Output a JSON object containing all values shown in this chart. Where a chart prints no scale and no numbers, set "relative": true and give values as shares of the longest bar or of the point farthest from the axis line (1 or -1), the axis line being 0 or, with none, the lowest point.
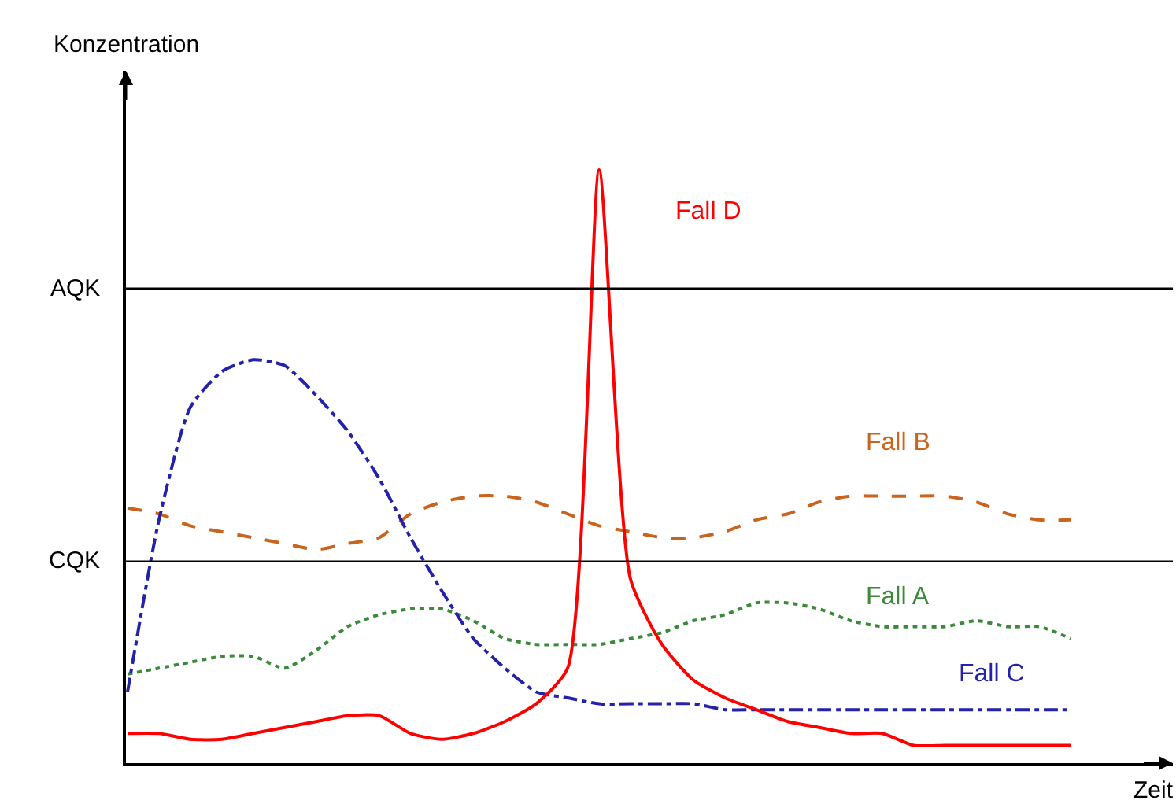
{
  "chart_data": {
    "type": "line",
    "relative": true,
    "xlabel": "Zeit",
    "ylabel": "Konzentration",
    "categories": [
      null,
      null,
      null,
      null,
      null,
      null,
      null,
      null,
      null,
      null,
      null,
      null,
      null,
      null,
      null,
      null,
      null,
      null,
      null,
      null,
      null,
      null,
      null,
      null,
      null,
      null,
      null,
      null,
      null,
      null,
      null
    ],
    "series": [
      {
        "name": "Fall A",
        "color": "#3a8a3a",
        "line_style": "dotted",
        "values": [
          0.15,
          0.16,
          0.17,
          0.18,
          0.18,
          0.16,
          0.19,
          0.23,
          0.25,
          0.26,
          0.26,
          0.24,
          0.21,
          0.2,
          0.2,
          0.2,
          0.21,
          0.22,
          0.24,
          0.25,
          0.27,
          0.27,
          0.26,
          0.24,
          0.23,
          0.23,
          0.23,
          0.24,
          0.23,
          0.23,
          0.21
        ]
      },
      {
        "name": "Fall B",
        "color": "#c8641e",
        "line_style": "dashed",
        "values": [
          0.43,
          0.42,
          0.4,
          0.39,
          0.38,
          0.37,
          0.36,
          0.37,
          0.38,
          0.42,
          0.44,
          0.45,
          0.45,
          0.44,
          0.42,
          0.4,
          0.39,
          0.38,
          0.38,
          0.39,
          0.41,
          0.42,
          0.44,
          0.45,
          0.45,
          0.45,
          0.45,
          0.44,
          0.42,
          0.41,
          0.41
        ]
      },
      {
        "name": "Fall C",
        "color": "#2222aa",
        "line_style": "dashdot",
        "values": [
          0.12,
          0.41,
          0.6,
          0.66,
          0.68,
          0.67,
          0.62,
          0.56,
          0.48,
          0.38,
          0.29,
          0.21,
          0.16,
          0.12,
          0.11,
          0.1,
          0.1,
          0.1,
          0.1,
          0.09,
          0.09,
          0.09,
          0.09,
          0.09,
          0.09,
          0.09,
          0.09,
          0.09,
          0.09,
          0.09,
          0.09
        ]
      },
      {
        "name": "Fall D",
        "color": "#ff0000",
        "line_style": "solid",
        "values": [
          0.05,
          0.05,
          0.04,
          0.04,
          0.05,
          0.06,
          0.07,
          0.08,
          0.08,
          0.05,
          0.04,
          0.05,
          0.07,
          0.1,
          0.16,
          1,
          0.31,
          0.2,
          0.14,
          0.11,
          0.09,
          0.07,
          0.06,
          0.05,
          0.05,
          0.03,
          0.03,
          0.03,
          0.03,
          0.03,
          0.03
        ]
      }
    ],
    "ref_lines": [
      {
        "axis": "y",
        "value": 0.8,
        "label": "AQK",
        "color": "#000000"
      },
      {
        "axis": "y",
        "value": 0.34,
        "label": "CQK",
        "color": "#000000"
      }
    ],
    "legend": false,
    "marker": "none"
  }
}
